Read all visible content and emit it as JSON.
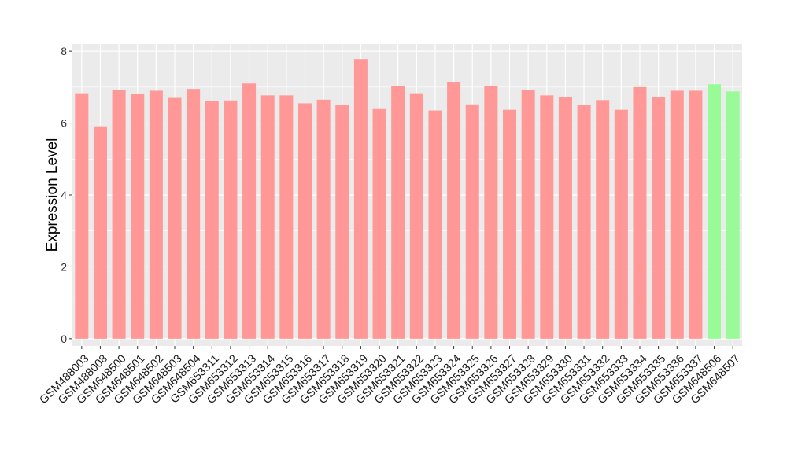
{
  "chart_data": {
    "type": "bar",
    "ylabel": "Expression Level",
    "xlabel": "",
    "ylim": [
      -0.2,
      8.2
    ],
    "yticks": [
      0,
      2,
      4,
      6,
      8
    ],
    "grid": true,
    "categories": [
      "GSM488003",
      "GSM488008",
      "GSM648500",
      "GSM648501",
      "GSM648502",
      "GSM648503",
      "GSM648504",
      "GSM653311",
      "GSM653312",
      "GSM653313",
      "GSM653314",
      "GSM653315",
      "GSM653316",
      "GSM653317",
      "GSM653318",
      "GSM653319",
      "GSM653320",
      "GSM653321",
      "GSM653322",
      "GSM653323",
      "GSM653324",
      "GSM653325",
      "GSM653326",
      "GSM653327",
      "GSM653328",
      "GSM653329",
      "GSM653330",
      "GSM653331",
      "GSM653332",
      "GSM653333",
      "GSM653334",
      "GSM653335",
      "GSM653336",
      "GSM653337",
      "GSM648506",
      "GSM648507"
    ],
    "values": [
      6.83,
      5.91,
      6.93,
      6.81,
      6.9,
      6.7,
      6.95,
      6.61,
      6.63,
      7.1,
      6.77,
      6.77,
      6.55,
      6.65,
      6.51,
      7.78,
      6.39,
      7.04,
      6.83,
      6.35,
      7.15,
      6.52,
      7.04,
      6.37,
      6.93,
      6.77,
      6.72,
      6.51,
      6.64,
      6.37,
      7.0,
      6.73,
      6.9,
      6.9,
      7.08,
      6.88
    ],
    "bar_colors": [
      "#ff9896",
      "#ff9896",
      "#ff9896",
      "#ff9896",
      "#ff9896",
      "#ff9896",
      "#ff9896",
      "#ff9896",
      "#ff9896",
      "#ff9896",
      "#ff9896",
      "#ff9896",
      "#ff9896",
      "#ff9896",
      "#ff9896",
      "#ff9896",
      "#ff9896",
      "#ff9896",
      "#ff9896",
      "#ff9896",
      "#ff9896",
      "#ff9896",
      "#ff9896",
      "#ff9896",
      "#ff9896",
      "#ff9896",
      "#ff9896",
      "#ff9896",
      "#ff9896",
      "#ff9896",
      "#ff9896",
      "#ff9896",
      "#ff9896",
      "#ff9896",
      "#98fb98",
      "#98fb98"
    ],
    "panel_color": "#ebebeb",
    "gridline_color": "#ffffff"
  }
}
